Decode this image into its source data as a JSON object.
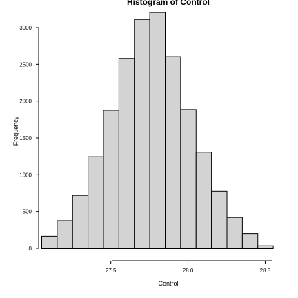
{
  "chart_data": {
    "type": "bar",
    "title": "Histogram of Control",
    "xlabel": "Control",
    "ylabel": "Frequency",
    "bin_edges": [
      27.05,
      27.15,
      27.25,
      27.35,
      27.45,
      27.55,
      27.65,
      27.75,
      27.85,
      27.95,
      28.05,
      28.15,
      28.25,
      28.35,
      28.45,
      28.55,
      28.65
    ],
    "values": [
      170,
      380,
      725,
      1250,
      1880,
      2585,
      3115,
      3210,
      2610,
      1890,
      1310,
      780,
      425,
      205,
      40,
      0
    ],
    "xlim": [
      27.05,
      28.6
    ],
    "ylim": [
      0,
      3250
    ],
    "xticks": [
      27.5,
      28.0,
      28.5
    ],
    "xtick_labels": [
      "27.5",
      "28.0",
      "28.5"
    ],
    "yticks": [
      0,
      500,
      1000,
      1500,
      2000,
      2500,
      3000
    ],
    "ytick_labels": [
      "0",
      "500",
      "1000",
      "1500",
      "2000",
      "2500",
      "3000"
    ],
    "bar_fill": "#d3d3d3",
    "bar_stroke": "#000000",
    "grid": false,
    "legend": "none"
  }
}
